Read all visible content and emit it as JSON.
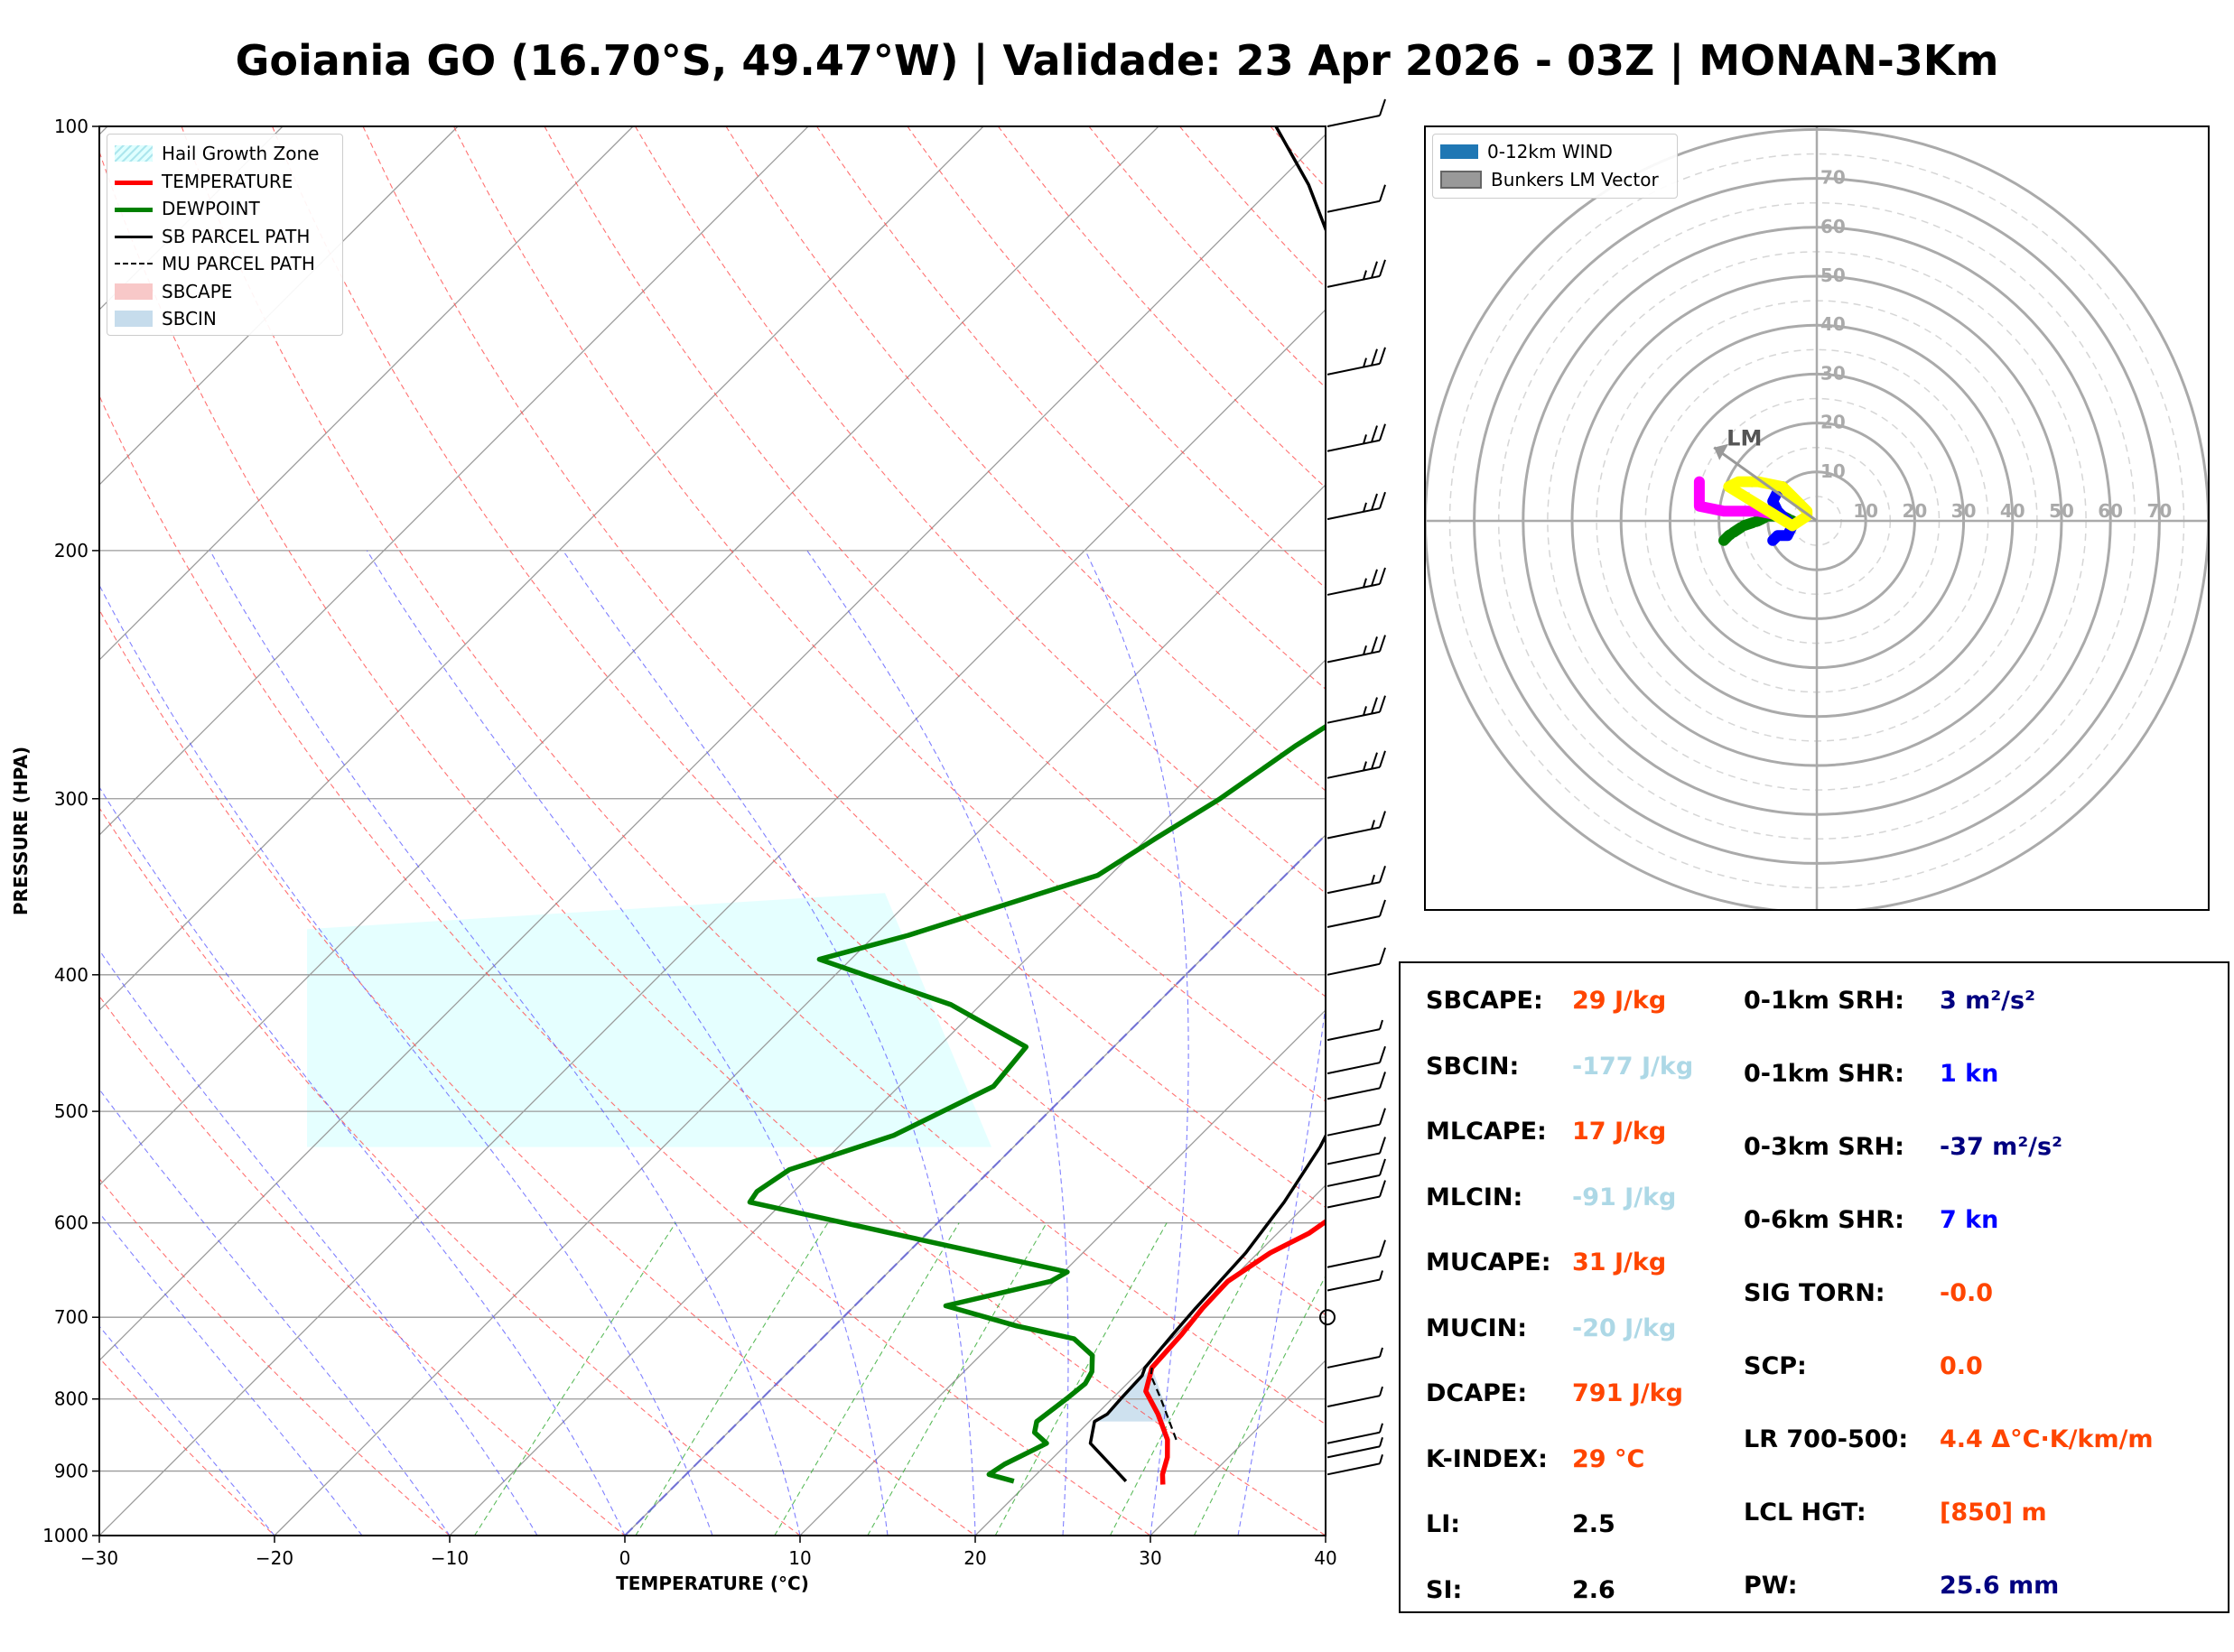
{
  "title": "Goiania GO (16.70°S, 49.47°W) | Validade: 23 Apr 2026 - 03Z | MONAN-3Km",
  "skewt": {
    "xlabel": "TEMPERATURE (°C)",
    "ylabel": "PRESSURE (HPA)",
    "x_ticks": [
      "−30",
      "−20",
      "−10",
      "0",
      "10",
      "20",
      "30",
      "40"
    ],
    "y_ticks": [
      "100",
      "200",
      "300",
      "400",
      "500",
      "600",
      "700",
      "800",
      "900",
      "1000"
    ],
    "legend": [
      {
        "label": "Hail Growth Zone",
        "color": "#e0ffff",
        "style": "patch"
      },
      {
        "label": "TEMPERATURE",
        "color": "#ff0000",
        "style": "line"
      },
      {
        "label": "DEWPOINT",
        "color": "#008000",
        "style": "line"
      },
      {
        "label": "SB PARCEL PATH",
        "color": "#000000",
        "style": "line"
      },
      {
        "label": "MU PARCEL PATH",
        "color": "#000000",
        "style": "dashed"
      },
      {
        "label": "SBCAPE",
        "color": "#f8c8c8",
        "style": "patch"
      },
      {
        "label": "SBCIN",
        "color": "#c6dcec",
        "style": "patch"
      }
    ]
  },
  "hodograph": {
    "legend": [
      {
        "label": "0-12km WIND",
        "color": "#1f77b4"
      },
      {
        "label": "Bunkers LM Vector",
        "color": "#999999"
      }
    ],
    "ring_labels": [
      "10",
      "20",
      "30",
      "40",
      "50",
      "60",
      "70"
    ],
    "lm_label": "LM"
  },
  "stats": {
    "left": [
      {
        "label": "SBCAPE:",
        "value": "29 J/kg",
        "color": "#ff4500"
      },
      {
        "label": "SBCIN:",
        "value": "-177 J/kg",
        "color": "#add8e6"
      },
      {
        "label": "MLCAPE:",
        "value": "17 J/kg",
        "color": "#ff4500"
      },
      {
        "label": "MLCIN:",
        "value": "-91 J/kg",
        "color": "#add8e6"
      },
      {
        "label": "MUCAPE:",
        "value": "31 J/kg",
        "color": "#ff4500"
      },
      {
        "label": "MUCIN:",
        "value": "-20 J/kg",
        "color": "#add8e6"
      },
      {
        "label": "DCAPE:",
        "value": "791 J/kg",
        "color": "#ff4500"
      },
      {
        "label": "K-INDEX:",
        "value": "29 °C",
        "color": "#ff4500"
      },
      {
        "label": "LI:",
        "value": "2.5",
        "color": "#000000"
      },
      {
        "label": "SI:",
        "value": "2.6",
        "color": "#000000"
      }
    ],
    "right": [
      {
        "label": "0-1km SRH:",
        "value": "3 m²/s²",
        "color": "#000080"
      },
      {
        "label": "0-1km SHR:",
        "value": "1 kn",
        "color": "#0000ff"
      },
      {
        "label": "0-3km SRH:",
        "value": "-37 m²/s²",
        "color": "#000080"
      },
      {
        "label": "0-6km SHR:",
        "value": "7 kn",
        "color": "#0000ff"
      },
      {
        "label": "SIG TORN:",
        "value": "-0.0",
        "color": "#ff4500"
      },
      {
        "label": "SCP:",
        "value": "0.0",
        "color": "#ff4500"
      },
      {
        "label": "LR 700-500:",
        "value": "4.4 Δ°C·K/km/m",
        "color": "#ff4500"
      },
      {
        "label": "LCL HGT:",
        "value": "[850] m",
        "color": "#ff4500"
      },
      {
        "label": "PW:",
        "value": "25.6 mm",
        "color": "#000080"
      }
    ]
  },
  "chart_data": [
    {
      "type": "line",
      "name": "skew-t",
      "xlabel": "TEMPERATURE (°C)",
      "ylabel": "PRESSURE (HPA)",
      "xlim": [
        -30,
        40
      ],
      "ylim": [
        1000,
        100
      ],
      "y_scale": "log",
      "skew": "45 degrees",
      "grid": true,
      "legend_position": "upper-left",
      "series": [
        {
          "name": "TEMPERATURE",
          "color": "#ff0000",
          "points": [
            [
              27.8,
              920
            ],
            [
              27.2,
              905
            ],
            [
              26.5,
              880
            ],
            [
              25.5,
              855
            ],
            [
              23.5,
              820
            ],
            [
              21.5,
              790
            ],
            [
              20.5,
              760
            ],
            [
              20.3,
              720
            ],
            [
              20.0,
              690
            ],
            [
              19.9,
              660
            ],
            [
              20.7,
              630
            ],
            [
              21.8,
              610
            ],
            [
              22.3,
              590
            ],
            [
              21.7,
              560
            ],
            [
              20.8,
              530
            ],
            [
              20.4,
              505
            ],
            [
              19.5,
              480
            ],
            [
              18.3,
              450
            ],
            [
              17.6,
              420
            ],
            [
              17.9,
              400
            ],
            [
              16.7,
              380
            ],
            [
              15.3,
              360
            ],
            [
              13.5,
              330
            ],
            [
              11.2,
              300
            ],
            [
              7.6,
              270
            ],
            [
              3.5,
              240
            ],
            [
              -0.8,
              210
            ],
            [
              -4.0,
              190
            ],
            [
              -6.5,
              170
            ],
            [
              -8.2,
              155
            ],
            [
              -9.0,
              145
            ],
            [
              -10.4,
              130
            ],
            [
              -10.5,
              115
            ],
            [
              -10.7,
              110
            ],
            [
              -8.0,
              100
            ]
          ]
        },
        {
          "name": "DEWPOINT",
          "color": "#008000",
          "points": [
            [
              19.1,
              915
            ],
            [
              17.3,
              905
            ],
            [
              17.6,
              890
            ],
            [
              18.8,
              860
            ],
            [
              17.5,
              845
            ],
            [
              17.0,
              830
            ],
            [
              17.4,
              800
            ],
            [
              17.6,
              780
            ],
            [
              17.3,
              765
            ],
            [
              16.4,
              745
            ],
            [
              14.4,
              725
            ],
            [
              10.4,
              710
            ],
            [
              5.2,
              687
            ],
            [
              9.8,
              660
            ],
            [
              10.2,
              650
            ],
            [
              -11.9,
              580
            ],
            [
              -12.1,
              570
            ],
            [
              -11.5,
              550
            ],
            [
              -7.5,
              520
            ],
            [
              -4.6,
              480
            ],
            [
              -5.0,
              450
            ],
            [
              -11.7,
              420
            ],
            [
              -21.8,
              390
            ],
            [
              -18.1,
              375
            ],
            [
              -10.7,
              340
            ],
            [
              -9.5,
              320
            ],
            [
              -8.1,
              300
            ],
            [
              -6.8,
              275
            ],
            [
              -4.9,
              250
            ],
            [
              -5.2,
              225
            ],
            [
              -4.7,
              210
            ],
            [
              -3.5,
              200
            ],
            [
              -2.2,
              190
            ],
            [
              -1.5,
              170
            ],
            [
              -1.7,
              150
            ],
            [
              -2.6,
              140
            ],
            [
              -2.0,
              130
            ],
            [
              -1.1,
              120
            ],
            [
              -0.9,
              110
            ],
            [
              -2.3,
              100
            ]
          ]
        },
        {
          "name": "SB PARCEL PATH",
          "color": "#000000",
          "points": [
            [
              25.5,
              915
            ],
            [
              21.3,
              860
            ],
            [
              20.3,
              830
            ],
            [
              20.6,
              820
            ],
            [
              20.5,
              800
            ],
            [
              20.4,
              770
            ],
            [
              20.1,
              760
            ],
            [
              19.8,
              720
            ],
            [
              19.6,
              690
            ],
            [
              19.3,
              630
            ],
            [
              18.6,
              580
            ],
            [
              17.5,
              530
            ],
            [
              15.8,
              480
            ],
            [
              13.7,
              430
            ],
            [
              12.1,
              400
            ],
            [
              10.4,
              370
            ],
            [
              7.5,
              330
            ],
            [
              3.6,
              290
            ],
            [
              -1.8,
              250
            ],
            [
              -7.4,
              215
            ],
            [
              -12.4,
              190
            ],
            [
              -17.4,
              170
            ],
            [
              -22.8,
              150
            ],
            [
              -28.0,
              135
            ],
            [
              -33.1,
              122
            ],
            [
              -38.1,
              110
            ],
            [
              -43.3,
              100
            ]
          ]
        },
        {
          "name": "MU PARCEL PATH",
          "color": "#000000",
          "points": [
            [
              26.0,
              855
            ],
            [
              22.8,
              800
            ],
            [
              20.9,
              770
            ],
            [
              20.5,
              760
            ]
          ]
        }
      ],
      "shaded_regions": [
        {
          "name": "Hail Growth Zone",
          "color": "#e0ffff",
          "p_range": [
            530,
            350
          ]
        },
        {
          "name": "SBCIN",
          "color": "#c6dcec",
          "p_range": [
            830,
            760
          ]
        }
      ],
      "wind_barbs": [
        {
          "p": 100,
          "speed_kt": 10
        },
        {
          "p": 115,
          "speed_kt": 10
        },
        {
          "p": 130,
          "speed_kt": 25
        },
        {
          "p": 150,
          "speed_kt": 25
        },
        {
          "p": 170,
          "speed_kt": 25
        },
        {
          "p": 190,
          "speed_kt": 25
        },
        {
          "p": 215,
          "speed_kt": 25
        },
        {
          "p": 240,
          "speed_kt": 25
        },
        {
          "p": 265,
          "speed_kt": 25
        },
        {
          "p": 290,
          "speed_kt": 25
        },
        {
          "p": 320,
          "speed_kt": 15
        },
        {
          "p": 350,
          "speed_kt": 15
        },
        {
          "p": 370,
          "speed_kt": 10
        },
        {
          "p": 400,
          "speed_kt": 10
        },
        {
          "p": 445,
          "speed_kt": 5
        },
        {
          "p": 470,
          "speed_kt": 10
        },
        {
          "p": 490,
          "speed_kt": 10
        },
        {
          "p": 520,
          "speed_kt": 10
        },
        {
          "p": 545,
          "speed_kt": 10
        },
        {
          "p": 565,
          "speed_kt": 10
        },
        {
          "p": 585,
          "speed_kt": 10
        },
        {
          "p": 645,
          "speed_kt": 10
        },
        {
          "p": 670,
          "speed_kt": 5
        },
        {
          "p": 760,
          "speed_kt": 5
        },
        {
          "p": 810,
          "speed_kt": 5
        },
        {
          "p": 860,
          "speed_kt": 5
        },
        {
          "p": 880,
          "speed_kt": 5
        },
        {
          "p": 905,
          "speed_kt": 5
        }
      ],
      "calm_marker_p": 700
    },
    {
      "type": "line",
      "name": "hodograph",
      "xlim": [
        -80,
        80
      ],
      "ylim": [
        -80,
        80
      ],
      "rings_kt": [
        10,
        20,
        30,
        40,
        50,
        60,
        70
      ],
      "segments": [
        {
          "color": "#008000",
          "points": [
            [
              -19,
              -4
            ],
            [
              -18,
              -3
            ],
            [
              -15,
              -1
            ],
            [
              -12,
              0
            ],
            [
              -10,
              1
            ],
            [
              -7,
              1
            ],
            [
              -5,
              0
            ]
          ]
        },
        {
          "color": "#ff00ff",
          "points": [
            [
              -7,
              1
            ],
            [
              -12,
              2
            ],
            [
              -16,
              2
            ],
            [
              -19,
              2
            ],
            [
              -24,
              3
            ],
            [
              -24,
              5
            ],
            [
              -24,
              8
            ]
          ]
        },
        {
          "color": "#0000ff",
          "points": [
            [
              -9,
              -4
            ],
            [
              -8,
              -3
            ],
            [
              -6,
              -3
            ],
            [
              -5,
              -1
            ],
            [
              -8,
              2
            ],
            [
              -9,
              4
            ],
            [
              -8,
              6
            ],
            [
              -7,
              7
            ]
          ]
        },
        {
          "color": "#ffff00",
          "points": [
            [
              -7,
              7
            ],
            [
              -12,
              8
            ],
            [
              -16,
              8
            ],
            [
              -18,
              7
            ],
            [
              -5,
              -1
            ],
            [
              -2,
              1
            ],
            [
              -2,
              2
            ],
            [
              -5,
              5
            ],
            [
              -7,
              7
            ]
          ]
        }
      ],
      "bunkers_lm": {
        "u": -21,
        "v": 15
      }
    }
  ]
}
